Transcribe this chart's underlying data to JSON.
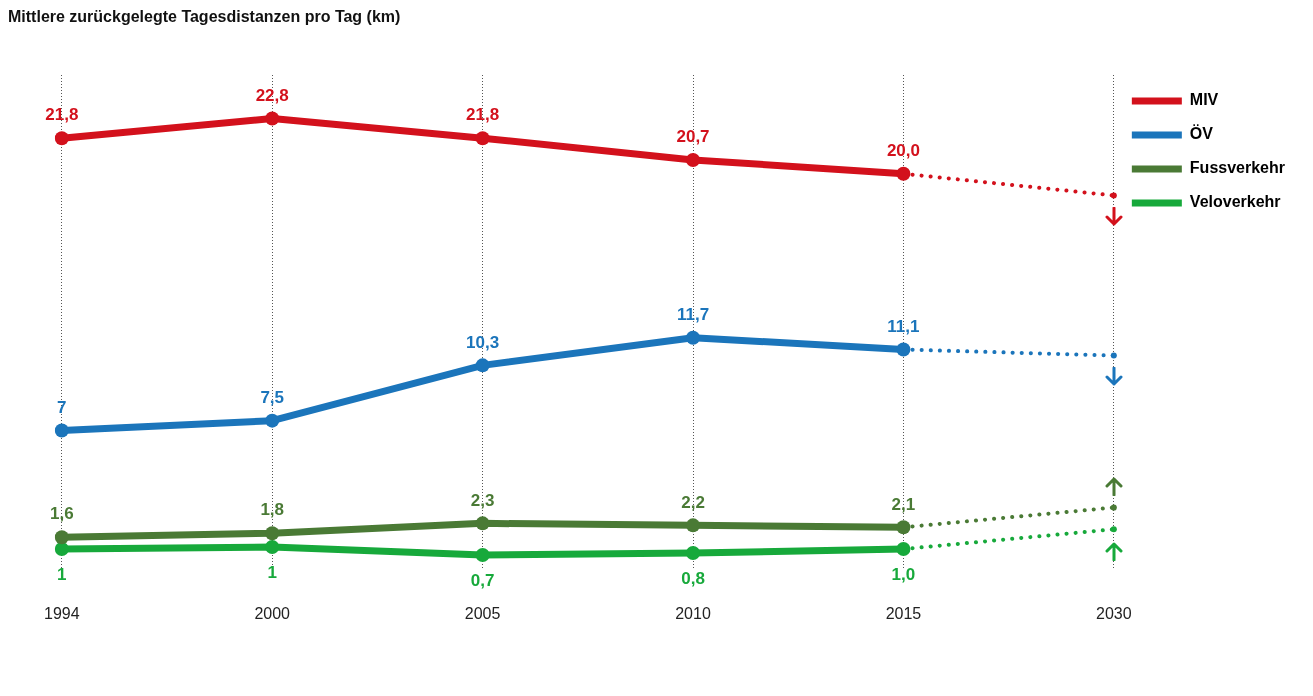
{
  "chart_data": {
    "type": "line",
    "title": "Mittlere zurückgelegte Tagesdistanzen pro Tag (km)",
    "categories": [
      "1994",
      "2000",
      "2005",
      "2010",
      "2015",
      "2030"
    ],
    "grid": "x",
    "legend": "top right",
    "marker": "circle",
    "line_style": "solid",
    "series": [
      {
        "name": "MIV",
        "color": "#d3111c",
        "values": [
          21.8,
          22.8,
          21.8,
          20.7,
          20.0,
          null
        ],
        "value_labels": [
          "21,8",
          "22,8",
          "21,8",
          "20,7",
          "20,0",
          null
        ]
      },
      {
        "color": "#d3111c",
        "values": [
          null,
          null,
          null,
          null,
          20.0,
          18.9
        ],
        "line_style": "dotted"
      },
      {
        "name": "ÖV",
        "color": "#1b75bb",
        "values": [
          7,
          7.5,
          10.3,
          11.7,
          11.1,
          null
        ],
        "value_labels": [
          "7",
          "7,5",
          "10,3",
          "11,7",
          "11,1",
          null
        ]
      },
      {
        "color": "#1b75bb",
        "values": [
          null,
          null,
          null,
          null,
          11.1,
          10.8
        ],
        "line_style": "dotted"
      },
      {
        "name": "Fussverkehr",
        "color": "#4a7a35",
        "values": [
          1.6,
          1.8,
          2.3,
          2.2,
          2.1,
          null
        ],
        "value_labels": [
          "1,6",
          "1,8",
          "2,3",
          "2,2",
          "2,1",
          null
        ]
      },
      {
        "color": "#4a7a35",
        "values": [
          null,
          null,
          null,
          null,
          2.1,
          3.1
        ],
        "line_style": "dotted"
      },
      {
        "name": "Veloverkehr",
        "color": "#17a93b",
        "values": [
          1,
          1.1,
          0.7,
          0.8,
          1.0,
          null
        ],
        "value_labels": [
          "1",
          "1",
          "0,7",
          "0,8",
          "1,0",
          null
        ]
      },
      {
        "color": "#17a93b",
        "values": [
          null,
          null,
          null,
          null,
          1.0,
          2.0
        ],
        "line_style": "dotted"
      }
    ]
  }
}
